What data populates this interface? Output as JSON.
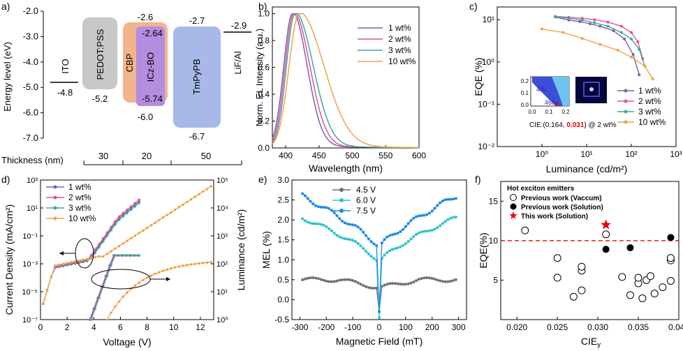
{
  "panels": {
    "a": {
      "label": "a)",
      "ylabel": "Energy level (eV)",
      "yticks": [
        "-2.0",
        "-3.0",
        "-4.0",
        "-5.0",
        "-6.0",
        "-7.0"
      ],
      "layers": [
        {
          "name": "ITO",
          "lumo": "",
          "homo": "-4.8"
        },
        {
          "name": "PEDOT:PSS",
          "lumo": "",
          "homo": "-5.2"
        },
        {
          "name": "CBP",
          "lumo": "-2.6",
          "homo": "-6.0"
        },
        {
          "name": "ICz-BO",
          "lumo": "-2.64",
          "homo": "-5.74"
        },
        {
          "name": "TmPyPB",
          "lumo": "-2.7",
          "homo": "-6.7"
        },
        {
          "name": "LiF/Al",
          "lumo": "-2.9",
          "homo": ""
        }
      ],
      "thickness_label": "Thickness (nm)",
      "thickness_values": [
        "30",
        "20",
        "50"
      ],
      "colors": {
        "pedot": "#c8c8c8",
        "cbp": "#f2b48c",
        "iczbo": "#b48ce0",
        "tmpypb": "#a8b8e8"
      }
    },
    "b": {
      "label": "b)",
      "chart_data": {
        "type": "line",
        "xlabel": "Wavelength (nm)",
        "ylabel": "Norm. EL Intensity (a.u.)",
        "xlim": [
          380,
          600
        ],
        "ylim": [
          0,
          1.05
        ],
        "xticks": [
          "400",
          "450",
          "500",
          "550",
          "600"
        ],
        "yticks": [
          "0.0",
          "0.2",
          "0.4",
          "0.6",
          "0.8",
          "1.0"
        ],
        "legend": "upper right",
        "series": [
          {
            "name": "1 wt%",
            "color": "#7b5fb5",
            "peak": 410,
            "left": 13,
            "right": 22
          },
          {
            "name": "2 wt%",
            "color": "#e0529a",
            "peak": 412,
            "left": 13,
            "right": 24
          },
          {
            "name": "3 wt%",
            "color": "#3ea89a",
            "peak": 414,
            "left": 13,
            "right": 27
          },
          {
            "name": "10 wt%",
            "color": "#f2a24a",
            "peak": 420,
            "left": 15,
            "right": 37
          }
        ]
      }
    },
    "c": {
      "label": "c)",
      "chart_data": {
        "type": "line",
        "xlabel": "Luminance (cd/m²)",
        "ylabel": "EQE (%)",
        "xscale": "log",
        "yscale": "log",
        "xlim": [
          0.1,
          1000
        ],
        "ylim": [
          0.01,
          20
        ],
        "xticks": [
          "10⁰",
          "10¹",
          "10²",
          "10³"
        ],
        "yticks": [
          "10⁻²",
          "10⁻¹",
          "10⁰",
          "10¹"
        ],
        "legend": "lower right",
        "series": [
          {
            "name": "1 wt%",
            "color": "#7b5fb5",
            "points": [
              [
                2,
                11.5
              ],
              [
                4,
                9.8
              ],
              [
                7,
                9
              ],
              [
                12,
                8
              ],
              [
                20,
                7
              ],
              [
                40,
                5.5
              ],
              [
                70,
                3.5
              ],
              [
                110,
                1.5
              ],
              [
                150,
                0.5
              ]
            ]
          },
          {
            "name": "2 wt%",
            "color": "#e0529a",
            "points": [
              [
                2,
                12
              ],
              [
                4,
                11.4
              ],
              [
                8,
                10.8
              ],
              [
                15,
                10
              ],
              [
                30,
                8.8
              ],
              [
                60,
                7
              ],
              [
                100,
                5
              ],
              [
                140,
                3
              ],
              [
                180,
                1.2
              ]
            ]
          },
          {
            "name": "3 wt%",
            "color": "#3ea89a",
            "points": [
              [
                2,
                11.8
              ],
              [
                4,
                10.8
              ],
              [
                8,
                9.8
              ],
              [
                15,
                8.5
              ],
              [
                30,
                7
              ],
              [
                60,
                5
              ],
              [
                100,
                3.5
              ],
              [
                150,
                2
              ],
              [
                200,
                0.8
              ]
            ]
          },
          {
            "name": "10 wt%",
            "color": "#f2a24a",
            "points": [
              [
                1,
                6
              ],
              [
                3,
                5
              ],
              [
                8,
                3.6
              ],
              [
                20,
                2.6
              ],
              [
                50,
                1.9
              ],
              [
                100,
                1.3
              ],
              [
                200,
                0.8
              ],
              [
                300,
                0.4
              ]
            ]
          }
        ],
        "inset_cie": "CIE:(0.164, ",
        "inset_cie_y": "0.031",
        "inset_cie_tail": ") @ 2 wt%",
        "inset_labels": [
          "480",
          "460"
        ],
        "inset_yticks": [
          "0.2",
          "0.1",
          "0.0"
        ],
        "inset_xticks": [
          "0.0",
          "0.1",
          "0.2"
        ]
      }
    },
    "d": {
      "label": "d)",
      "chart_data": {
        "type": "line",
        "xlabel": "Voltage (V)",
        "ylabel": "Current Density (mA/cm²)",
        "y2label": "Luminance (cd/m²)",
        "xlim": [
          0,
          13
        ],
        "xticks": [
          "0",
          "2",
          "4",
          "6",
          "8",
          "10",
          "12"
        ],
        "yticks": [
          "10³",
          "10¹",
          "10⁻¹",
          "10⁻³",
          "10⁻⁵",
          "10⁻⁷"
        ],
        "y2ticks": [
          "10⁵",
          "10⁴",
          "10³",
          "10²",
          "10¹",
          "10⁰"
        ],
        "legend": "upper left",
        "series": [
          {
            "name": "1 wt%",
            "color": "#7b5fb5",
            "end_v": 7.4,
            "jstart": 3.6
          },
          {
            "name": "2 wt%",
            "color": "#e0529a",
            "end_v": 7.4,
            "jstart": 3.5
          },
          {
            "name": "3 wt%",
            "color": "#3ea89a",
            "end_v": 7.4,
            "jstart": 3.7
          },
          {
            "name": "10 wt%",
            "color": "#f2a24a",
            "end_v": 12.8,
            "jstart": 4.5
          }
        ]
      }
    },
    "e": {
      "label": "e)",
      "chart_data": {
        "type": "line",
        "xlabel": "Magnetic Field (mT)",
        "ylabel": "MEL (%)",
        "xlim": [
          -330,
          330
        ],
        "ylim": [
          -0.5,
          3.0
        ],
        "xticks": [
          "-300",
          "-200",
          "-100",
          "0",
          "100",
          "200",
          "300"
        ],
        "yticks": [
          "3.0",
          "2.5",
          "2.0",
          "1.5",
          "1.0",
          "0.5",
          "0.0",
          "-0.5"
        ],
        "legend": "upper left",
        "series": [
          {
            "name": "4.5 V",
            "color": "#707070",
            "wing": 0.5,
            "dip": -0.3
          },
          {
            "name": "6.0 V",
            "color": "#2fc4c4",
            "wing": 2.05,
            "dip": -0.45
          },
          {
            "name": "7.5 V",
            "color": "#1e88e5",
            "wing": 2.6,
            "dip": -0.3
          }
        ]
      }
    },
    "f": {
      "label": "f)",
      "chart_data": {
        "type": "scatter",
        "xlabel": "CIEy",
        "ylabel": "EQE(%)",
        "xlim": [
          0.018,
          0.04
        ],
        "ylim": [
          0,
          17.5
        ],
        "xticks": [
          "0.020",
          "0.025",
          "0.030",
          "0.035",
          "0.040"
        ],
        "yticks": [
          "15",
          "10",
          "5"
        ],
        "threshold": 10,
        "legend_title": "Hot exciton emitters",
        "series": [
          {
            "name": "Previous work (Vaccum)",
            "marker": "open-circle",
            "points": [
              [
                0.021,
                11.3
              ],
              [
                0.025,
                7.8
              ],
              [
                0.025,
                5.3
              ],
              [
                0.027,
                2.9
              ],
              [
                0.028,
                6.2
              ],
              [
                0.028,
                6.7
              ],
              [
                0.028,
                3.7
              ],
              [
                0.031,
                10.8
              ],
              [
                0.033,
                5.4
              ],
              [
                0.034,
                3.1
              ],
              [
                0.035,
                4.6
              ],
              [
                0.035,
                5.3
              ],
              [
                0.0355,
                2.7
              ],
              [
                0.036,
                5.0
              ],
              [
                0.0365,
                5.5
              ],
              [
                0.037,
                3.3
              ],
              [
                0.038,
                4.1
              ],
              [
                0.039,
                7.5
              ],
              [
                0.039,
                7.8
              ],
              [
                0.039,
                4.9
              ]
            ]
          },
          {
            "name": "Previous work (Solution)",
            "marker": "filled-circle",
            "points": [
              [
                0.031,
                8.9
              ],
              [
                0.034,
                9.1
              ],
              [
                0.039,
                10.4
              ]
            ]
          },
          {
            "name": "This work (Solution)",
            "marker": "red-star",
            "points": [
              [
                0.031,
                12.0
              ]
            ]
          }
        ]
      }
    }
  }
}
